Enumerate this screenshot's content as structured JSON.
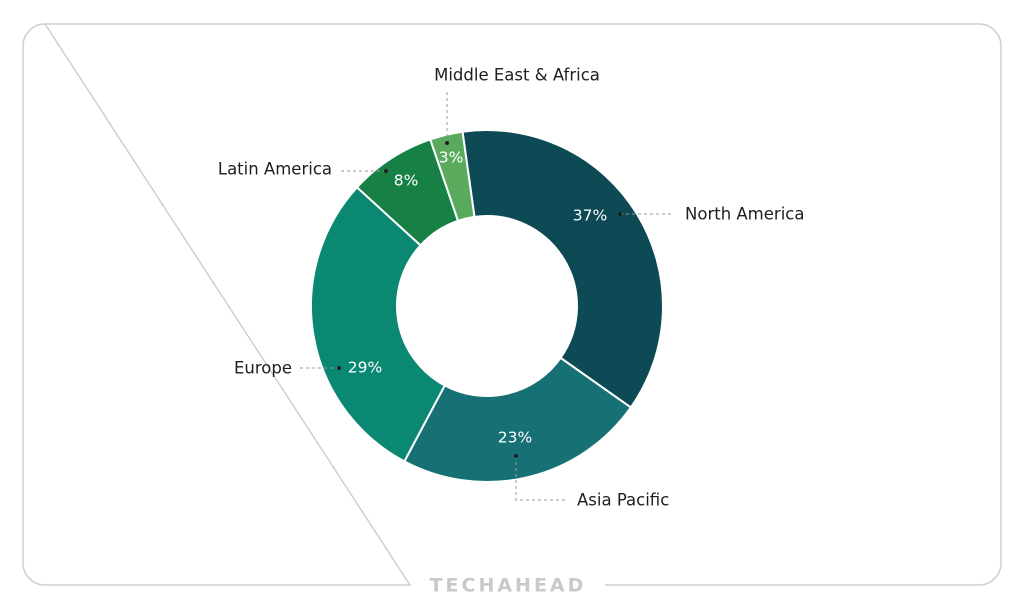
{
  "chart_data": {
    "type": "donut",
    "categories": [
      "North America",
      "Asia Pacific",
      "Europe",
      "Latin America",
      "Middle East & Africa"
    ],
    "values": [
      37,
      23,
      29,
      8,
      3
    ],
    "value_labels": [
      "37%",
      "23%",
      "29%",
      "8%",
      "3%"
    ],
    "colors": [
      "#0d4a55",
      "#177073",
      "#0a8871",
      "#178045",
      "#5aaa5e"
    ]
  },
  "footer": "TECHAHEAD"
}
